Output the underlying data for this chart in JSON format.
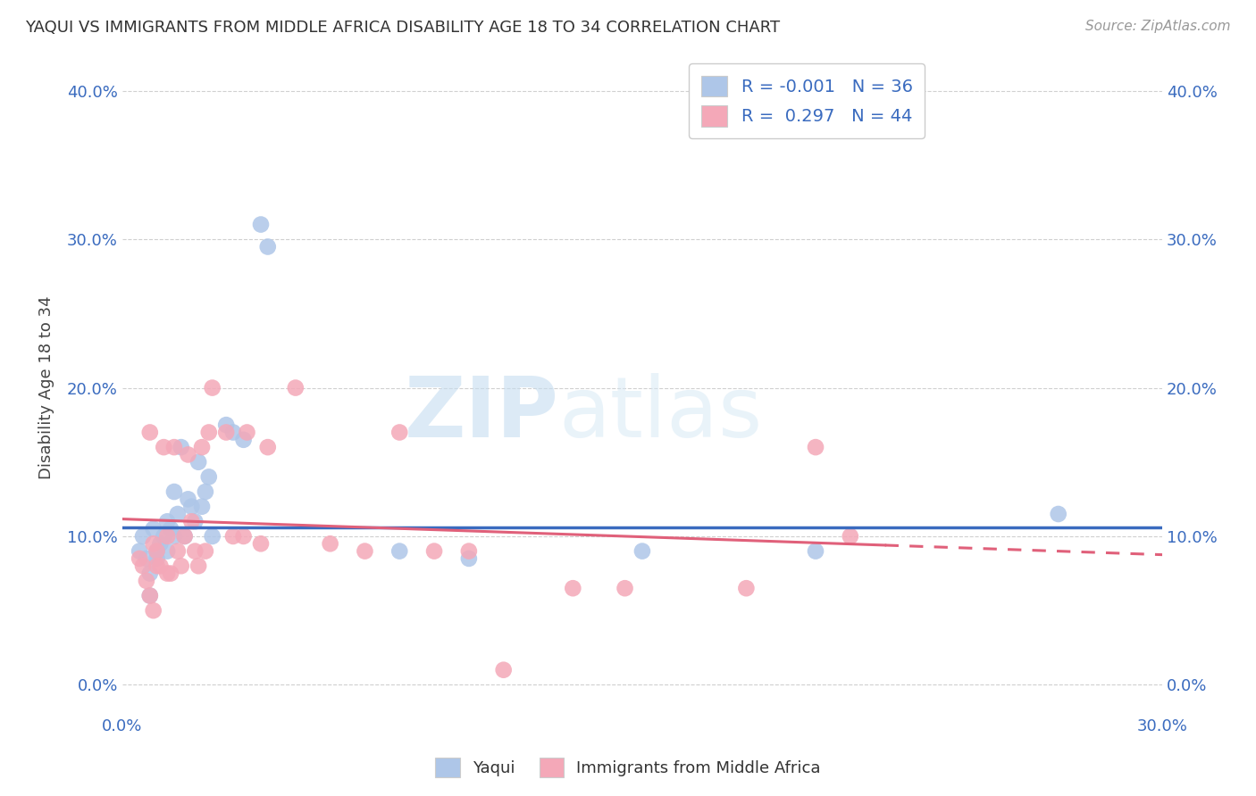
{
  "title": "YAQUI VS IMMIGRANTS FROM MIDDLE AFRICA DISABILITY AGE 18 TO 34 CORRELATION CHART",
  "source": "Source: ZipAtlas.com",
  "ylabel": "Disability Age 18 to 34",
  "xlim": [
    0.0,
    0.3
  ],
  "ylim": [
    -0.02,
    0.42
  ],
  "xticks": [
    0.0,
    0.05,
    0.1,
    0.15,
    0.2,
    0.25,
    0.3
  ],
  "yticks": [
    0.0,
    0.1,
    0.2,
    0.3,
    0.4
  ],
  "blue_R": "-0.001",
  "blue_N": "36",
  "pink_R": "0.297",
  "pink_N": "44",
  "blue_color": "#aec6e8",
  "pink_color": "#f4a8b8",
  "blue_line_color": "#3a6bbf",
  "pink_line_color": "#e0607a",
  "blue_scatter": [
    [
      0.005,
      0.09
    ],
    [
      0.006,
      0.1
    ],
    [
      0.007,
      0.085
    ],
    [
      0.008,
      0.075
    ],
    [
      0.009,
      0.105
    ],
    [
      0.01,
      0.09
    ],
    [
      0.01,
      0.085
    ],
    [
      0.011,
      0.095
    ],
    [
      0.012,
      0.1
    ],
    [
      0.013,
      0.09
    ],
    [
      0.013,
      0.11
    ],
    [
      0.014,
      0.105
    ],
    [
      0.015,
      0.13
    ],
    [
      0.015,
      0.1
    ],
    [
      0.016,
      0.115
    ],
    [
      0.017,
      0.16
    ],
    [
      0.018,
      0.1
    ],
    [
      0.019,
      0.125
    ],
    [
      0.02,
      0.12
    ],
    [
      0.021,
      0.11
    ],
    [
      0.022,
      0.15
    ],
    [
      0.023,
      0.12
    ],
    [
      0.024,
      0.13
    ],
    [
      0.025,
      0.14
    ],
    [
      0.026,
      0.1
    ],
    [
      0.03,
      0.175
    ],
    [
      0.032,
      0.17
    ],
    [
      0.035,
      0.165
    ],
    [
      0.04,
      0.31
    ],
    [
      0.042,
      0.295
    ],
    [
      0.08,
      0.09
    ],
    [
      0.1,
      0.085
    ],
    [
      0.15,
      0.09
    ],
    [
      0.2,
      0.09
    ],
    [
      0.27,
      0.115
    ],
    [
      0.008,
      0.06
    ]
  ],
  "pink_scatter": [
    [
      0.005,
      0.085
    ],
    [
      0.006,
      0.08
    ],
    [
      0.007,
      0.07
    ],
    [
      0.008,
      0.06
    ],
    [
      0.009,
      0.095
    ],
    [
      0.01,
      0.08
    ],
    [
      0.01,
      0.09
    ],
    [
      0.011,
      0.08
    ],
    [
      0.012,
      0.16
    ],
    [
      0.013,
      0.075
    ],
    [
      0.013,
      0.1
    ],
    [
      0.014,
      0.075
    ],
    [
      0.015,
      0.16
    ],
    [
      0.016,
      0.09
    ],
    [
      0.017,
      0.08
    ],
    [
      0.018,
      0.1
    ],
    [
      0.019,
      0.155
    ],
    [
      0.02,
      0.11
    ],
    [
      0.021,
      0.09
    ],
    [
      0.022,
      0.08
    ],
    [
      0.023,
      0.16
    ],
    [
      0.024,
      0.09
    ],
    [
      0.025,
      0.17
    ],
    [
      0.026,
      0.2
    ],
    [
      0.03,
      0.17
    ],
    [
      0.032,
      0.1
    ],
    [
      0.035,
      0.1
    ],
    [
      0.036,
      0.17
    ],
    [
      0.04,
      0.095
    ],
    [
      0.042,
      0.16
    ],
    [
      0.05,
      0.2
    ],
    [
      0.06,
      0.095
    ],
    [
      0.07,
      0.09
    ],
    [
      0.08,
      0.17
    ],
    [
      0.09,
      0.09
    ],
    [
      0.1,
      0.09
    ],
    [
      0.11,
      0.01
    ],
    [
      0.13,
      0.065
    ],
    [
      0.145,
      0.065
    ],
    [
      0.18,
      0.065
    ],
    [
      0.2,
      0.16
    ],
    [
      0.21,
      0.1
    ],
    [
      0.008,
      0.17
    ],
    [
      0.009,
      0.05
    ]
  ],
  "watermark_zip": "ZIP",
  "watermark_atlas": "atlas",
  "background_color": "#ffffff",
  "grid_color": "#d0d0d0"
}
